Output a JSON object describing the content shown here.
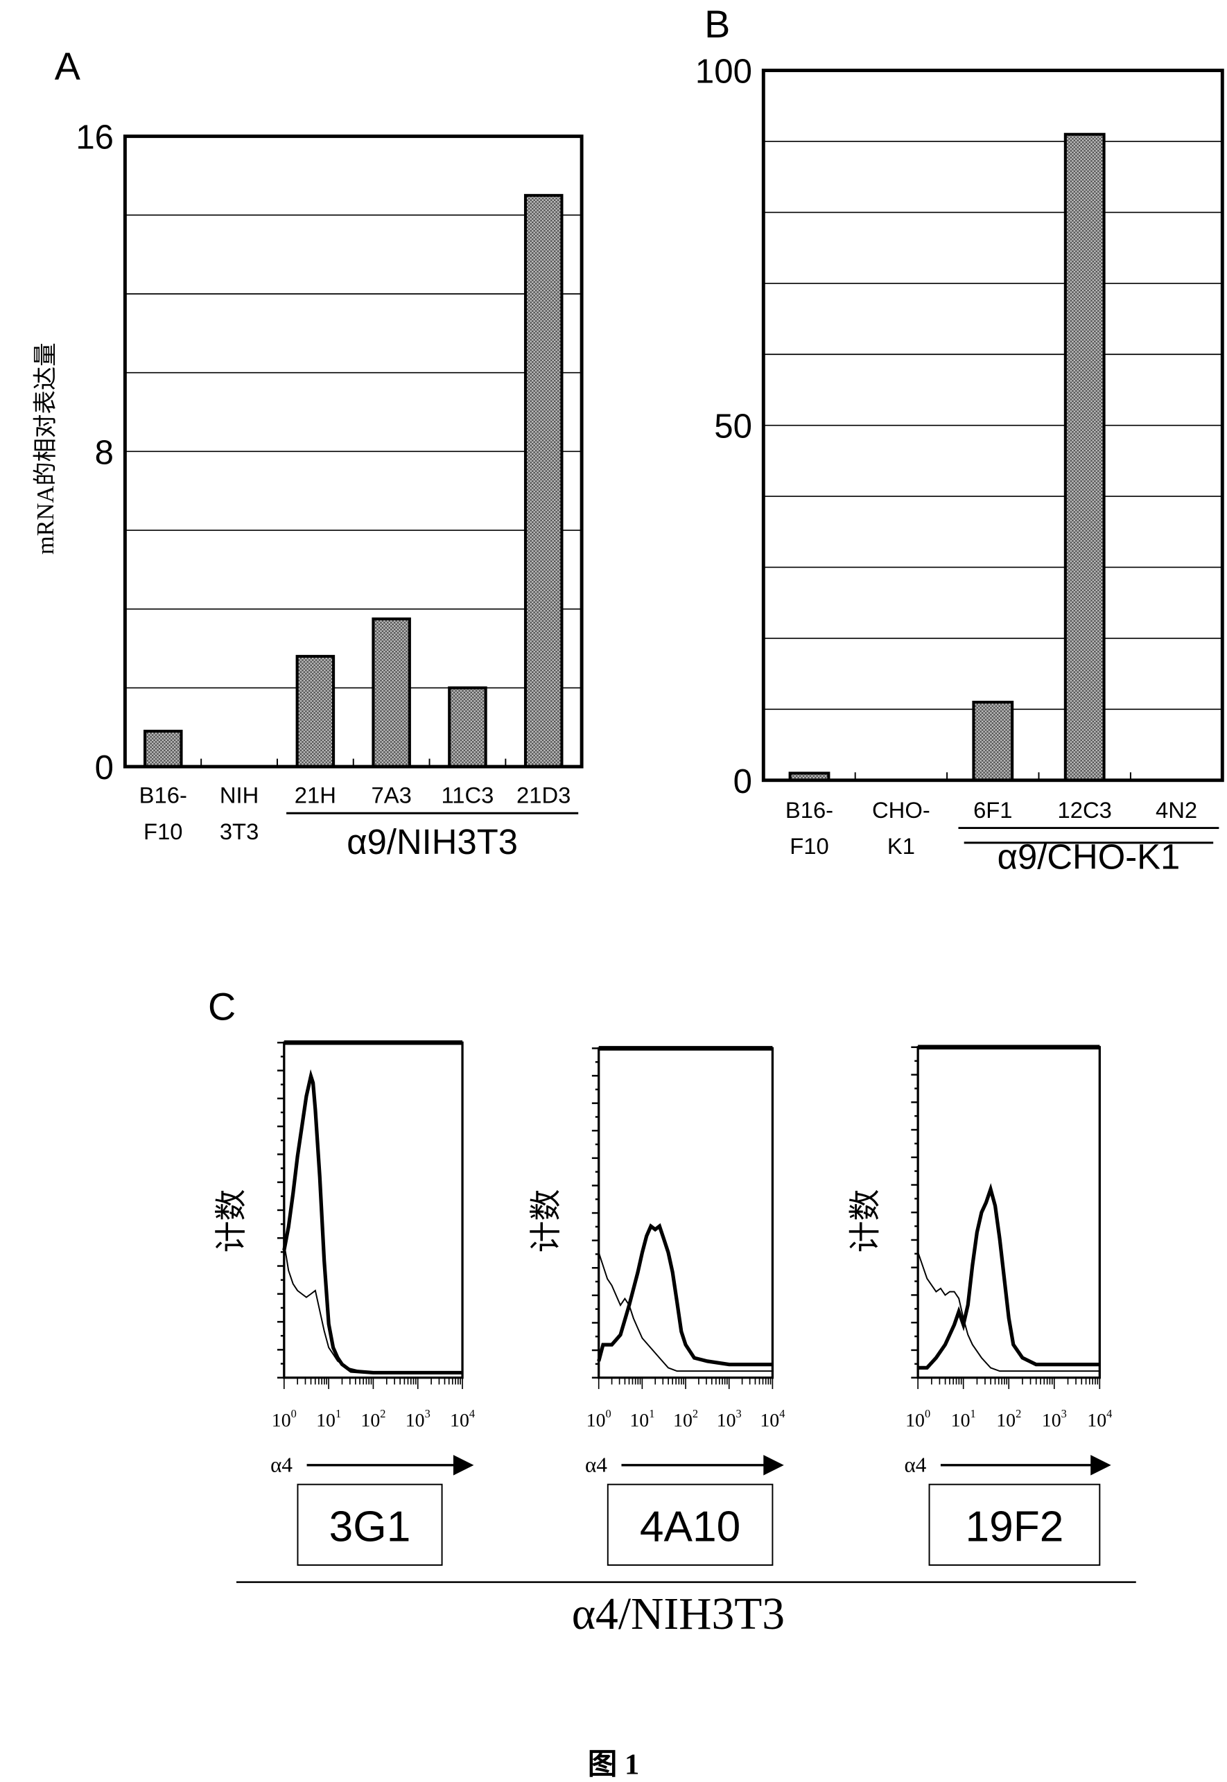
{
  "figure_caption": "图  1",
  "chart_data": [
    {
      "panel": "A",
      "type": "bar",
      "ylabel": "mRNA的相对表达量",
      "ylim": [
        0,
        16
      ],
      "ytick_labels": [
        "16",
        "8",
        "0"
      ],
      "ytick_values": [
        16,
        8,
        0
      ],
      "grid_step": 2,
      "categories": [
        [
          "B16-",
          "F10"
        ],
        [
          "NIH",
          "3T3"
        ],
        [
          "21H"
        ],
        [
          "7A3"
        ],
        [
          "11C3"
        ],
        [
          "21D3"
        ]
      ],
      "values": [
        0.9,
        0,
        2.8,
        3.75,
        2.0,
        14.5
      ],
      "group_label": "α9/NIH3T3",
      "group_members": [
        "21H",
        "7A3",
        "11C3",
        "21D3"
      ],
      "bar_color": "#9a9a9a"
    },
    {
      "panel": "B",
      "type": "bar",
      "ylim": [
        0,
        100
      ],
      "ytick_labels": [
        "100",
        "50",
        "0"
      ],
      "ytick_values": [
        100,
        50,
        0
      ],
      "grid_step": 10,
      "categories": [
        [
          "B16-",
          "F10"
        ],
        [
          "CHO-",
          "K1"
        ],
        [
          "6F1"
        ],
        [
          "12C3"
        ],
        [
          "4N2"
        ]
      ],
      "values": [
        1,
        0,
        11,
        91,
        0
      ],
      "group_label": "α9/CHO-K1",
      "group_members": [
        "6F1",
        "12C3",
        "4N2"
      ],
      "bar_color": "#9a9a9a"
    },
    {
      "panel": "C",
      "type": "line",
      "ylabel": "计数",
      "xlabel": "α4",
      "xscale": "log",
      "xtick_base": "10",
      "xtick_exponents": [
        "0",
        "1",
        "2",
        "3",
        "4"
      ],
      "xlim_log10": [
        0,
        4
      ],
      "ylim": [
        0,
        100
      ],
      "group_label": "α4/NIH3T3",
      "histograms": [
        {
          "name": "3G1",
          "stained": [
            [
              0,
              38
            ],
            [
              0.1,
              45
            ],
            [
              0.2,
              55
            ],
            [
              0.3,
              66
            ],
            [
              0.4,
              75
            ],
            [
              0.5,
              84
            ],
            [
              0.6,
              90
            ],
            [
              0.65,
              88
            ],
            [
              0.7,
              80
            ],
            [
              0.8,
              60
            ],
            [
              0.9,
              35
            ],
            [
              1.0,
              16
            ],
            [
              1.1,
              9
            ],
            [
              1.2,
              6
            ],
            [
              1.3,
              4
            ],
            [
              1.5,
              2
            ],
            [
              2,
              1.5
            ],
            [
              3,
              1.5
            ],
            [
              4,
              1.5
            ]
          ],
          "control": [
            [
              0,
              40
            ],
            [
              0.05,
              36
            ],
            [
              0.1,
              32
            ],
            [
              0.2,
              28
            ],
            [
              0.3,
              26
            ],
            [
              0.4,
              25
            ],
            [
              0.5,
              24
            ],
            [
              0.6,
              25
            ],
            [
              0.7,
              26
            ],
            [
              0.8,
              20
            ],
            [
              0.9,
              14
            ],
            [
              1.0,
              9
            ],
            [
              1.1,
              7
            ],
            [
              1.2,
              5
            ],
            [
              1.4,
              3
            ],
            [
              1.7,
              2
            ],
            [
              2,
              1.5
            ],
            [
              3,
              1.5
            ],
            [
              4,
              1.5
            ]
          ]
        },
        {
          "name": "4A10",
          "stained": [
            [
              0,
              5
            ],
            [
              0.1,
              10
            ],
            [
              0.3,
              10
            ],
            [
              0.5,
              13
            ],
            [
              0.7,
              22
            ],
            [
              0.9,
              32
            ],
            [
              1.0,
              38
            ],
            [
              1.1,
              43
            ],
            [
              1.2,
              46
            ],
            [
              1.3,
              45
            ],
            [
              1.4,
              46
            ],
            [
              1.5,
              42
            ],
            [
              1.6,
              38
            ],
            [
              1.7,
              32
            ],
            [
              1.8,
              23
            ],
            [
              1.9,
              14
            ],
            [
              2.0,
              10
            ],
            [
              2.2,
              6
            ],
            [
              2.5,
              5
            ],
            [
              3,
              4
            ],
            [
              3.5,
              4
            ],
            [
              4,
              4
            ]
          ],
          "control": [
            [
              0,
              38
            ],
            [
              0.1,
              34
            ],
            [
              0.2,
              30
            ],
            [
              0.3,
              28
            ],
            [
              0.4,
              25
            ],
            [
              0.5,
              22
            ],
            [
              0.6,
              24
            ],
            [
              0.7,
              22
            ],
            [
              0.8,
              18
            ],
            [
              0.9,
              15
            ],
            [
              1.0,
              12
            ],
            [
              1.2,
              9
            ],
            [
              1.4,
              6
            ],
            [
              1.6,
              3
            ],
            [
              1.8,
              2
            ],
            [
              2.2,
              2
            ],
            [
              3,
              2
            ],
            [
              4,
              2
            ]
          ]
        },
        {
          "name": "19F2",
          "stained": [
            [
              0,
              3
            ],
            [
              0.2,
              3
            ],
            [
              0.4,
              6
            ],
            [
              0.6,
              10
            ],
            [
              0.8,
              16
            ],
            [
              0.9,
              20
            ],
            [
              1.0,
              16
            ],
            [
              1.1,
              22
            ],
            [
              1.2,
              34
            ],
            [
              1.3,
              44
            ],
            [
              1.4,
              50
            ],
            [
              1.5,
              53
            ],
            [
              1.6,
              57
            ],
            [
              1.7,
              52
            ],
            [
              1.8,
              42
            ],
            [
              1.9,
              30
            ],
            [
              2.0,
              18
            ],
            [
              2.1,
              10
            ],
            [
              2.3,
              6
            ],
            [
              2.6,
              4
            ],
            [
              3,
              4
            ],
            [
              4,
              4
            ]
          ],
          "control": [
            [
              0,
              38
            ],
            [
              0.1,
              34
            ],
            [
              0.2,
              30
            ],
            [
              0.3,
              28
            ],
            [
              0.4,
              26
            ],
            [
              0.5,
              27
            ],
            [
              0.6,
              25
            ],
            [
              0.7,
              26
            ],
            [
              0.8,
              26
            ],
            [
              0.9,
              24
            ],
            [
              1.0,
              18
            ],
            [
              1.1,
              13
            ],
            [
              1.2,
              10
            ],
            [
              1.4,
              6
            ],
            [
              1.6,
              3
            ],
            [
              1.8,
              2
            ],
            [
              2.2,
              2
            ],
            [
              3,
              2
            ],
            [
              4,
              2
            ]
          ]
        }
      ]
    }
  ]
}
